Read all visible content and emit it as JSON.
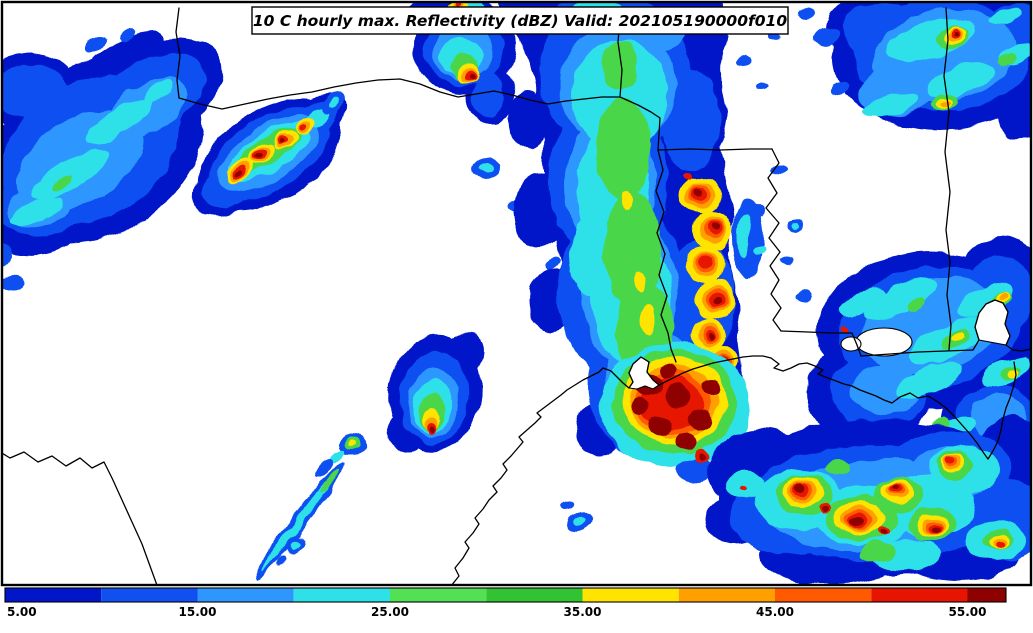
{
  "title": "10 C hourly max. Reflectivity (dBZ) Valid: 202105190000f010",
  "chart_data": {
    "type": "heatmap",
    "title": "10 C hourly max. Reflectivity (dBZ) Valid: 202105190000f010",
    "variable": "hourly max. Reflectivity",
    "units": "dBZ",
    "valid_label": "Valid: 202105190000f010",
    "region": "South-central United States and Gulf Coast (Texas, Oklahoma, Arkansas, Louisiana, Mississippi, Alabama)",
    "colorbar": {
      "orientation": "horizontal",
      "min": 5,
      "max": 57,
      "tick_values": [
        5,
        15,
        25,
        35,
        45,
        55
      ],
      "tick_labels": [
        "5.00",
        "15.00",
        "25.00",
        "35.00",
        "45.00",
        "55.00"
      ],
      "segments": [
        {
          "from": 5,
          "to": 10,
          "color": "#0016c8"
        },
        {
          "from": 10,
          "to": 15,
          "color": "#1050f0"
        },
        {
          "from": 15,
          "to": 20,
          "color": "#2e96ff"
        },
        {
          "from": 20,
          "to": 25,
          "color": "#2ee0e8"
        },
        {
          "from": 25,
          "to": 30,
          "color": "#54e054"
        },
        {
          "from": 30,
          "to": 35,
          "color": "#32c332"
        },
        {
          "from": 35,
          "to": 40,
          "color": "#ffe400"
        },
        {
          "from": 40,
          "to": 45,
          "color": "#ffa000"
        },
        {
          "from": 45,
          "to": 50,
          "color": "#ff5a00"
        },
        {
          "from": 50,
          "to": 55,
          "color": "#e61400"
        },
        {
          "from": 55,
          "to": 57,
          "color": "#8f0000"
        }
      ]
    },
    "features": [
      {
        "area": "west and northwest Texas",
        "coverage": "broad 5-25 dBZ echo with embedded stronger streaks",
        "max_dbz": 35
      },
      {
        "area": "north-central Texas",
        "coverage": "short SW-NE line of cells with 50-57 dBZ cores",
        "max_dbz": 57
      },
      {
        "area": "Red River region, north Texas",
        "coverage": "isolated strong cell at top of domain",
        "max_dbz": 57
      },
      {
        "area": "east Texas into western Louisiana",
        "coverage": "large north-south band, 25-35 dBZ core with 45-57 dBZ cells on its eastern edge",
        "max_dbz": 57
      },
      {
        "area": "upper Texas coast (Houston / Beaumont)",
        "coverage": "cluster of very intense cells, widespread 50-57 dBZ",
        "max_dbz": 57
      },
      {
        "area": "southwest of Houston",
        "coverage": "isolated cell with narrow trailing fine line",
        "max_dbz": 52
      },
      {
        "area": "Louisiana Gulf coast",
        "coverage": "arc of intense cells 45-57 dBZ within broad 5-30 dBZ shield",
        "max_dbz": 57
      },
      {
        "area": "southeast Louisiana and Mississippi",
        "coverage": "widespread 5-30 dBZ stratiform echo",
        "max_dbz": 45
      },
      {
        "area": "northeast Mississippi / Alabama border",
        "coverage": "5-30 dBZ area with one 50-57 dBZ core",
        "max_dbz": 57
      }
    ]
  }
}
